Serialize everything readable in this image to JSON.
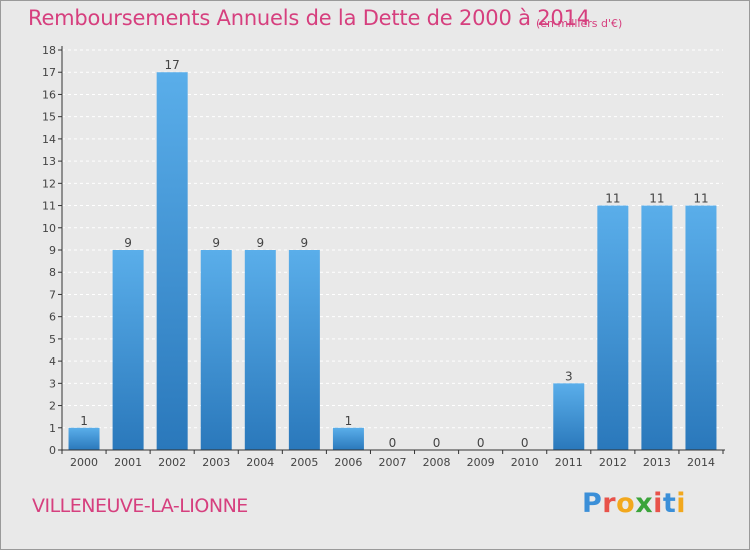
{
  "page": {
    "title": "Remboursements Annuels de la Dette de 2000 à 2014",
    "unit_note": "(en milliers d'€)",
    "commune": "VILLENEUVE-LA-LIONNE",
    "logo_text": "Proxiti",
    "logo_colors": [
      "#3b8fd8",
      "#e8524a",
      "#f2a81d",
      "#3ba43b",
      "#e8524a",
      "#3b8fd8",
      "#f2a81d"
    ]
  },
  "colors": {
    "title": "#d63f7e",
    "bar_top": "#5aaeea",
    "bar_bottom": "#2a78bb",
    "background": "#e9e9e9",
    "grid": "#ffffff",
    "axis": "#333333"
  },
  "chart_data": {
    "type": "bar",
    "title": "Remboursements Annuels de la Dette de 2000 à 2014",
    "subtitle": "(en milliers d'€)",
    "xlabel": "",
    "ylabel": "",
    "categories": [
      "2000",
      "2001",
      "2002",
      "2003",
      "2004",
      "2005",
      "2006",
      "2007",
      "2008",
      "2009",
      "2010",
      "2011",
      "2012",
      "2013",
      "2014"
    ],
    "values": [
      1,
      9,
      17,
      9,
      9,
      9,
      1,
      0,
      0,
      0,
      0,
      3,
      11,
      11,
      11
    ],
    "data_labels": [
      "1",
      "9",
      "17",
      "9",
      "9",
      "9",
      "1",
      "0",
      "0",
      "0",
      "0",
      "3",
      "11",
      "11",
      "11"
    ],
    "ylim": [
      0,
      18
    ],
    "yticks": [
      0,
      1,
      2,
      3,
      4,
      5,
      6,
      7,
      8,
      9,
      10,
      11,
      12,
      13,
      14,
      15,
      16,
      17,
      18
    ],
    "grid": true
  }
}
